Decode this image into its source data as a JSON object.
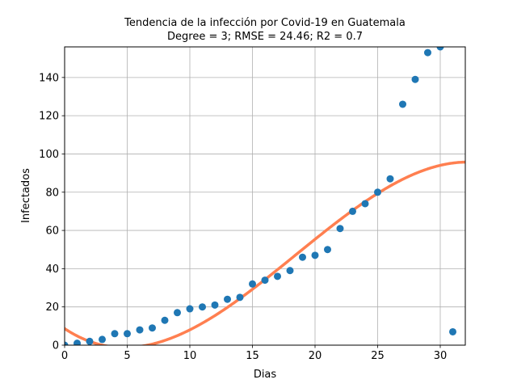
{
  "chart_data": {
    "type": "scatter",
    "title": "Tendencia de la infección por Covid-19 en Guatemala",
    "subtitle": "Degree = 3; RMSE = 24.46; R2 = 0.7",
    "xlabel": "Dias",
    "ylabel": "Infectados",
    "xlim": [
      0,
      32
    ],
    "ylim": [
      0,
      156
    ],
    "xticks": [
      0,
      5,
      10,
      15,
      20,
      25,
      30
    ],
    "yticks": [
      0,
      20,
      40,
      60,
      80,
      100,
      120,
      140
    ],
    "grid": true,
    "series": [
      {
        "kind": "scatter",
        "color": "#1f77b4",
        "x": [
          0,
          1,
          2,
          3,
          4,
          5,
          6,
          7,
          8,
          9,
          10,
          11,
          12,
          13,
          14,
          15,
          16,
          17,
          18,
          19,
          20,
          21,
          22,
          23,
          24,
          25,
          26,
          27,
          28,
          29,
          30,
          31
        ],
        "y": [
          0,
          1,
          2,
          3,
          6,
          6,
          8,
          9,
          13,
          17,
          19,
          20,
          21,
          24,
          25,
          32,
          34,
          36,
          39,
          46,
          47,
          50,
          61,
          70,
          74,
          80,
          87,
          126,
          139,
          153,
          156,
          7
        ]
      },
      {
        "kind": "line",
        "color": "#ff7f50",
        "fit_degree": 3,
        "coefficients": [
          8.66,
          -4.36,
          0.524,
          -0.00946
        ]
      }
    ]
  }
}
